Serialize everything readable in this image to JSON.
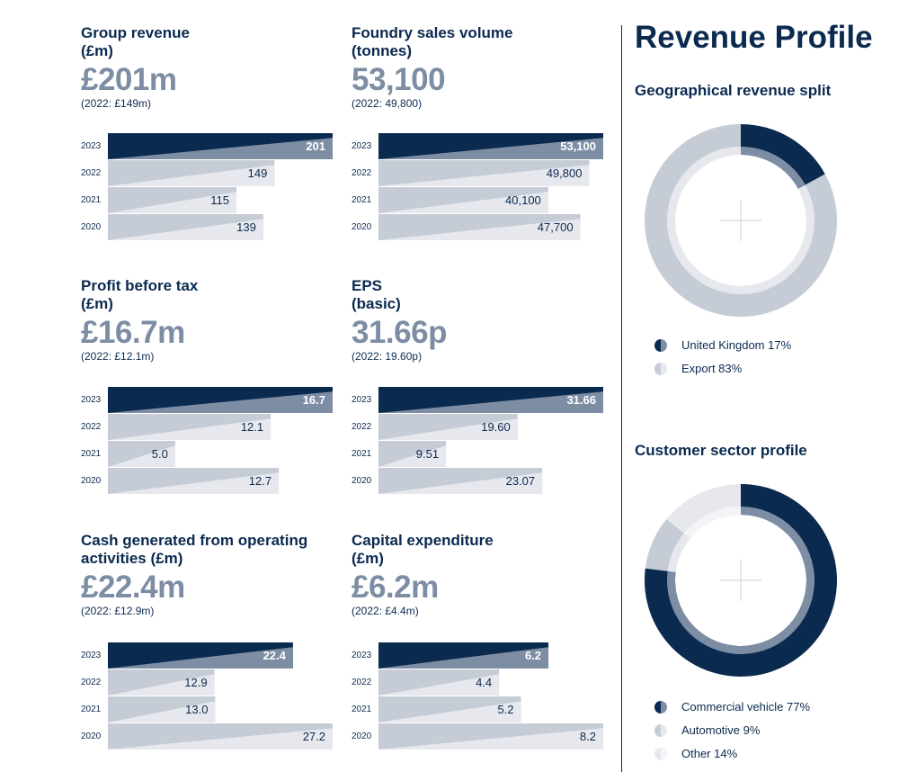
{
  "colors": {
    "navy": "#0b2a4f",
    "slate": "#7d8da3",
    "light": "#c6ccd6",
    "pale": "#e6e8ee"
  },
  "kpis": [
    {
      "title1": "Group revenue",
      "title2": "(£m)",
      "value": "£201m",
      "prev": "(2022: £149m)"
    },
    {
      "title1": "Foundry sales volume",
      "title2": "(tonnes)",
      "value": "53,100",
      "prev": "(2022: 49,800)"
    },
    {
      "title1": "Profit before tax",
      "title2": "(£m)",
      "value": "£16.7m",
      "prev": "(2022: £12.1m)"
    },
    {
      "title1": "EPS",
      "title2": "(basic)",
      "value": "31.66p",
      "prev": "(2022: 19.60p)"
    },
    {
      "title1": "Cash generated from operating",
      "title2": "activities (£m)",
      "value": "£22.4m",
      "prev": "(2022: £12.9m)"
    },
    {
      "title1": "Capital expenditure",
      "title2": "(£m)",
      "value": "£6.2m",
      "prev": "(2022: £4.4m)"
    }
  ],
  "chart_data": [
    {
      "type": "bar",
      "orientation": "horizontal",
      "categories": [
        "2023",
        "2022",
        "2021",
        "2020"
      ],
      "values": [
        201,
        149,
        115,
        139
      ],
      "labels": [
        "201",
        "149",
        "115",
        "139"
      ]
    },
    {
      "type": "bar",
      "orientation": "horizontal",
      "categories": [
        "2023",
        "2022",
        "2021",
        "2020"
      ],
      "values": [
        53100,
        49800,
        40100,
        47700
      ],
      "labels": [
        "53,100",
        "49,800",
        "40,100",
        "47,700"
      ]
    },
    {
      "type": "bar",
      "orientation": "horizontal",
      "categories": [
        "2023",
        "2022",
        "2021",
        "2020"
      ],
      "values": [
        16.7,
        12.1,
        5.0,
        12.7
      ],
      "labels": [
        "16.7",
        "12.1",
        "5.0",
        "12.7"
      ]
    },
    {
      "type": "bar",
      "orientation": "horizontal",
      "categories": [
        "2023",
        "2022",
        "2021",
        "2020"
      ],
      "values": [
        31.66,
        19.6,
        9.51,
        23.07
      ],
      "labels": [
        "31.66",
        "19.60",
        "9.51",
        "23.07"
      ]
    },
    {
      "type": "bar",
      "orientation": "horizontal",
      "categories": [
        "2023",
        "2022",
        "2021",
        "2020"
      ],
      "values": [
        22.4,
        12.9,
        13.0,
        27.2
      ],
      "labels": [
        "22.4",
        "12.9",
        "13.0",
        "27.2"
      ]
    },
    {
      "type": "bar",
      "orientation": "horizontal",
      "categories": [
        "2023",
        "2022",
        "2021",
        "2020"
      ],
      "values": [
        6.2,
        4.4,
        5.2,
        8.2
      ],
      "labels": [
        "6.2",
        "4.4",
        "5.2",
        "8.2"
      ]
    }
  ],
  "revenue_profile": {
    "title": "Revenue Profile",
    "geo": {
      "title": "Geographical revenue split",
      "chart_data": {
        "type": "pie",
        "style": "donut",
        "slices": [
          {
            "name": "United Kingdom",
            "value": 17,
            "label": "United Kingdom 17%",
            "color": "#0b2a4f"
          },
          {
            "name": "Export",
            "value": 83,
            "label": "Export 83%",
            "color": "#c6ccd6"
          }
        ]
      }
    },
    "sector": {
      "title": "Customer sector profile",
      "chart_data": {
        "type": "pie",
        "style": "donut",
        "slices": [
          {
            "name": "Commercial vehicle",
            "value": 77,
            "label": "Commercial vehicle 77%",
            "color": "#0b2a4f"
          },
          {
            "name": "Automotive",
            "value": 9,
            "label": "Automotive 9%",
            "color": "#c6ccd6"
          },
          {
            "name": "Other",
            "value": 14,
            "label": "Other 14%",
            "color": "#e6e8ee"
          }
        ]
      }
    }
  }
}
